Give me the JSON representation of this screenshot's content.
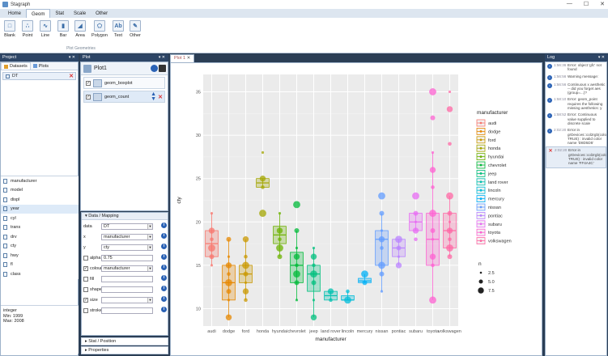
{
  "app": {
    "title": "Stagraph",
    "window_controls": [
      "—",
      "☐",
      "✕"
    ]
  },
  "menu": {
    "tabs": [
      "Home",
      "Geom",
      "Stat",
      "Scale",
      "Other"
    ],
    "active": "Geom"
  },
  "ribbon": {
    "buttons": [
      {
        "label": "Blank",
        "glyph": "□"
      },
      {
        "label": "Point",
        "glyph": "∴"
      },
      {
        "label": "Line",
        "glyph": "∿"
      },
      {
        "label": "Bar",
        "glyph": "▮"
      },
      {
        "label": "Area",
        "glyph": "◢"
      },
      {
        "label": "Polygon",
        "glyph": "⬠"
      },
      {
        "label": "Text",
        "glyph": "Ab"
      },
      {
        "label": "Other",
        "glyph": "✎"
      }
    ],
    "group_label": "Plot Geometries"
  },
  "project": {
    "header": "Project",
    "tabs": [
      "Datasets",
      "Plots"
    ],
    "datasets": [
      "DT"
    ],
    "variables": [
      "manufacturer",
      "model",
      "displ",
      "year",
      "cyl",
      "trans",
      "drv",
      "cty",
      "hwy",
      "fl",
      "class"
    ],
    "selected_variable": "year",
    "info": [
      "integer",
      "Min: 1999",
      "Max: 2008"
    ]
  },
  "plotpanel": {
    "header": "Plot",
    "plot_name": "Plot1",
    "layers": [
      {
        "name": "geom_boxplot",
        "checked": true
      },
      {
        "name": "geom_count",
        "checked": true
      }
    ],
    "mapping_header": "Data / Mapping",
    "mapping": {
      "data": "DT",
      "x": "manufacturer",
      "y": "cty",
      "alpha": "0.75",
      "colour": "manufacturer",
      "fill": "",
      "shape": "",
      "size": "",
      "stroke": ""
    },
    "mapping_labels": {
      "data": "data",
      "x": "x",
      "y": "y",
      "alpha": "alpha",
      "colour": "colour",
      "fill": "fill",
      "shape": "shape",
      "size": "size",
      "stroke": "stroke"
    },
    "sections": [
      "Stat / Position",
      "Properties"
    ]
  },
  "doc": {
    "tab": "Plot 1"
  },
  "log": {
    "header": "Log",
    "entries": [
      {
        "time": "1:56:36",
        "message": "Error: object 'gfc' not found",
        "type": "info"
      },
      {
        "time": "1:56:56",
        "message": "Warning message:",
        "type": "info"
      },
      {
        "time": "1:56:56",
        "message": "Continuous x aesthetic -- did you forget aes (group=...)?",
        "type": "info"
      },
      {
        "time": "1:58:10",
        "message": "Error: geom_point requires the following missing aesthetics: y",
        "type": "info"
      },
      {
        "time": "1:58:52",
        "message": "Error: Continuous value supplied to discrete scale",
        "type": "info"
      },
      {
        "time": "2:02:20",
        "message": "Error in grDevices::col2rgb(colour, TRUE) : invalid color name 'D8D5D5'",
        "type": "info"
      },
      {
        "time": "2:02:20",
        "message": "Error in grDevices::col2rgb(colour, TRUE) : invalid color name 'FF4A4C'",
        "type": "error"
      }
    ]
  },
  "chart_data": {
    "type": "boxplot",
    "xlabel": "manufacturer",
    "ylabel": "cty",
    "ylim": [
      8,
      37
    ],
    "yticks": [
      10,
      15,
      20,
      25,
      30,
      35
    ],
    "categories": [
      "audi",
      "dodge",
      "ford",
      "honda",
      "hyundai",
      "chevrolet",
      "jeep",
      "land rover",
      "lincoln",
      "mercury",
      "nissan",
      "pontiac",
      "subaru",
      "toyota",
      "volkswagen"
    ],
    "colors": [
      "#f8766d",
      "#e58700",
      "#c99800",
      "#a3a500",
      "#6bb100",
      "#00ba38",
      "#00bf7d",
      "#00c0af",
      "#00bcd8",
      "#00b0f6",
      "#619cff",
      "#b983ff",
      "#e76bf3",
      "#fd61d1",
      "#ff67a4"
    ],
    "boxes": [
      {
        "min": 15,
        "q1": 16,
        "median": 17.5,
        "q3": 19,
        "max": 21,
        "points": [
          15,
          16,
          17,
          18,
          19,
          21
        ]
      },
      {
        "min": 9,
        "q1": 11,
        "median": 13,
        "q3": 15,
        "max": 18,
        "points": [
          9,
          11,
          12,
          13,
          14,
          15,
          16,
          18
        ]
      },
      {
        "min": 11,
        "q1": 13,
        "median": 14,
        "q3": 15,
        "max": 18,
        "points": [
          11,
          12,
          13,
          14,
          15,
          16,
          18
        ]
      },
      {
        "min": 24,
        "q1": 24,
        "median": 24.5,
        "q3": 25,
        "max": 25,
        "points": [
          21,
          24,
          25,
          28
        ]
      },
      {
        "min": 16,
        "q1": 17.5,
        "median": 18.5,
        "q3": 19.5,
        "max": 21,
        "points": [
          16,
          17,
          18,
          19,
          21
        ]
      },
      {
        "min": 11,
        "q1": 13,
        "median": 15,
        "q3": 16.5,
        "max": 19,
        "points": [
          11,
          13,
          14,
          15,
          16,
          17,
          19,
          22
        ]
      },
      {
        "min": 9,
        "q1": 12,
        "median": 14,
        "q3": 15,
        "max": 17,
        "points": [
          9,
          11,
          13,
          14,
          15,
          16,
          17
        ]
      },
      {
        "min": 11,
        "q1": 11,
        "median": 11.5,
        "q3": 12,
        "max": 12,
        "points": [
          11,
          12
        ]
      },
      {
        "min": 11,
        "q1": 11,
        "median": 11,
        "q3": 11.5,
        "max": 12,
        "points": [
          11,
          12
        ]
      },
      {
        "min": 13,
        "q1": 13,
        "median": 13.2,
        "q3": 13.5,
        "max": 14,
        "points": [
          13,
          14
        ]
      },
      {
        "min": 12,
        "q1": 15,
        "median": 18,
        "q3": 19,
        "max": 21,
        "points": [
          12,
          14,
          15,
          17,
          18,
          19,
          21,
          23
        ]
      },
      {
        "min": 15,
        "q1": 16,
        "median": 17,
        "q3": 18,
        "max": 18,
        "points": [
          15,
          16,
          17,
          18
        ]
      },
      {
        "min": 19,
        "q1": 19,
        "median": 20,
        "q3": 21,
        "max": 21,
        "points": [
          18,
          19,
          20,
          21,
          23
        ]
      },
      {
        "min": 11,
        "q1": 15,
        "median": 18,
        "q3": 21,
        "max": 28,
        "points": [
          11,
          15,
          16,
          18,
          19,
          21,
          24,
          26,
          28,
          32,
          35
        ]
      },
      {
        "min": 16,
        "q1": 17,
        "median": 19,
        "q3": 21,
        "max": 23,
        "points": [
          16,
          17,
          18,
          19,
          20,
          21,
          23,
          29,
          33,
          35
        ]
      }
    ],
    "legend": {
      "title": "manufacturer",
      "size_title": "n",
      "sizes": [
        2.5,
        5.0,
        7.5
      ],
      "size_labels": [
        "2.5",
        "5.0",
        "7.5"
      ]
    }
  }
}
